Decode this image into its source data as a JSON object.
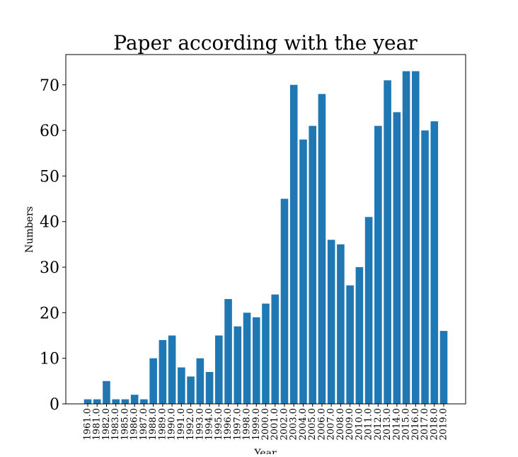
{
  "chart_data": {
    "type": "bar",
    "title": "Paper according with the year",
    "xlabel": "Year",
    "ylabel": "Numbers",
    "categories": [
      "1961.0",
      "1981.0",
      "1982.0",
      "1983.0",
      "1985.0",
      "1986.0",
      "1987.0",
      "1988.0",
      "1989.0",
      "1990.0",
      "1991.0",
      "1992.0",
      "1993.0",
      "1994.0",
      "1995.0",
      "1996.0",
      "1997.0",
      "1998.0",
      "1999.0",
      "2000.0",
      "2001.0",
      "2002.0",
      "2003.0",
      "2004.0",
      "2005.0",
      "2006.0",
      "2007.0",
      "2008.0",
      "2009.0",
      "2010.0",
      "2011.0",
      "2012.0",
      "2013.0",
      "2014.0",
      "2015.0",
      "2016.0",
      "2017.0",
      "2018.0",
      "2019.0"
    ],
    "values": [
      1,
      1,
      5,
      1,
      1,
      2,
      1,
      10,
      14,
      15,
      8,
      6,
      10,
      7,
      15,
      23,
      17,
      20,
      19,
      22,
      24,
      45,
      70,
      58,
      61,
      68,
      36,
      35,
      26,
      30,
      41,
      61,
      71,
      64,
      73,
      73,
      60,
      62,
      16
    ],
    "ylim": [
      0,
      76.65
    ],
    "yticks": [
      0,
      10,
      20,
      30,
      40,
      50,
      60,
      70
    ],
    "grid": false,
    "bar_color": "#1f77b4"
  }
}
